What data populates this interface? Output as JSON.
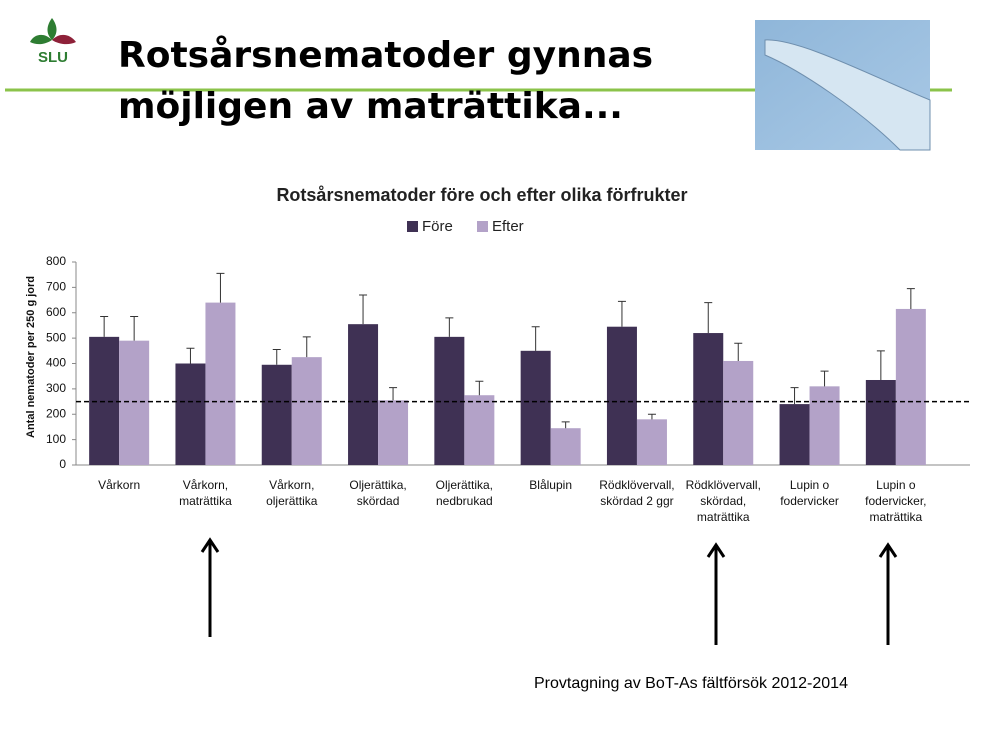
{
  "slide": {
    "logo": "SLU",
    "title_lines": [
      "Rotsårsnematoder gynnas",
      "möjligen av maträttika..."
    ],
    "footer": "Provtagning av BoT-As fältförsök 2012-2014"
  },
  "chart_data": {
    "type": "bar",
    "title": "Rotsårsnematoder före och efter olika förfrukter",
    "y_label": "Antal nematoder per 250 g jord",
    "categories": [
      "Vårkorn",
      "Vårkorn,\nmaträttika",
      "Vårkorn,\noljerättika",
      "Oljerättika,\nskördad",
      "Oljerättika,\nnedbrukad",
      "Blålupin",
      "Rödklövervall,\nskördad 2 ggr",
      "Rödklövervall,\nskördad,\nmaträttika",
      "Lupin o\nfodervicker",
      "Lupin o\nfodervicker,\nmaträttika"
    ],
    "series": [
      {
        "name": "Före",
        "color": "#3f3154",
        "values": [
          505,
          400,
          395,
          555,
          505,
          450,
          545,
          520,
          240,
          335
        ],
        "errors": [
          80,
          60,
          60,
          115,
          75,
          95,
          100,
          120,
          65,
          115
        ]
      },
      {
        "name": "Efter",
        "color": "#b3a2c8",
        "values": [
          490,
          640,
          425,
          255,
          275,
          145,
          180,
          410,
          310,
          615
        ],
        "errors": [
          95,
          115,
          80,
          50,
          55,
          25,
          20,
          70,
          60,
          80
        ]
      }
    ],
    "reference_line": 250,
    "ylim": [
      0,
      800
    ],
    "yticks": [
      0,
      100,
      200,
      300,
      400,
      500,
      600,
      700,
      800
    ],
    "grid": false,
    "legend": "top"
  }
}
